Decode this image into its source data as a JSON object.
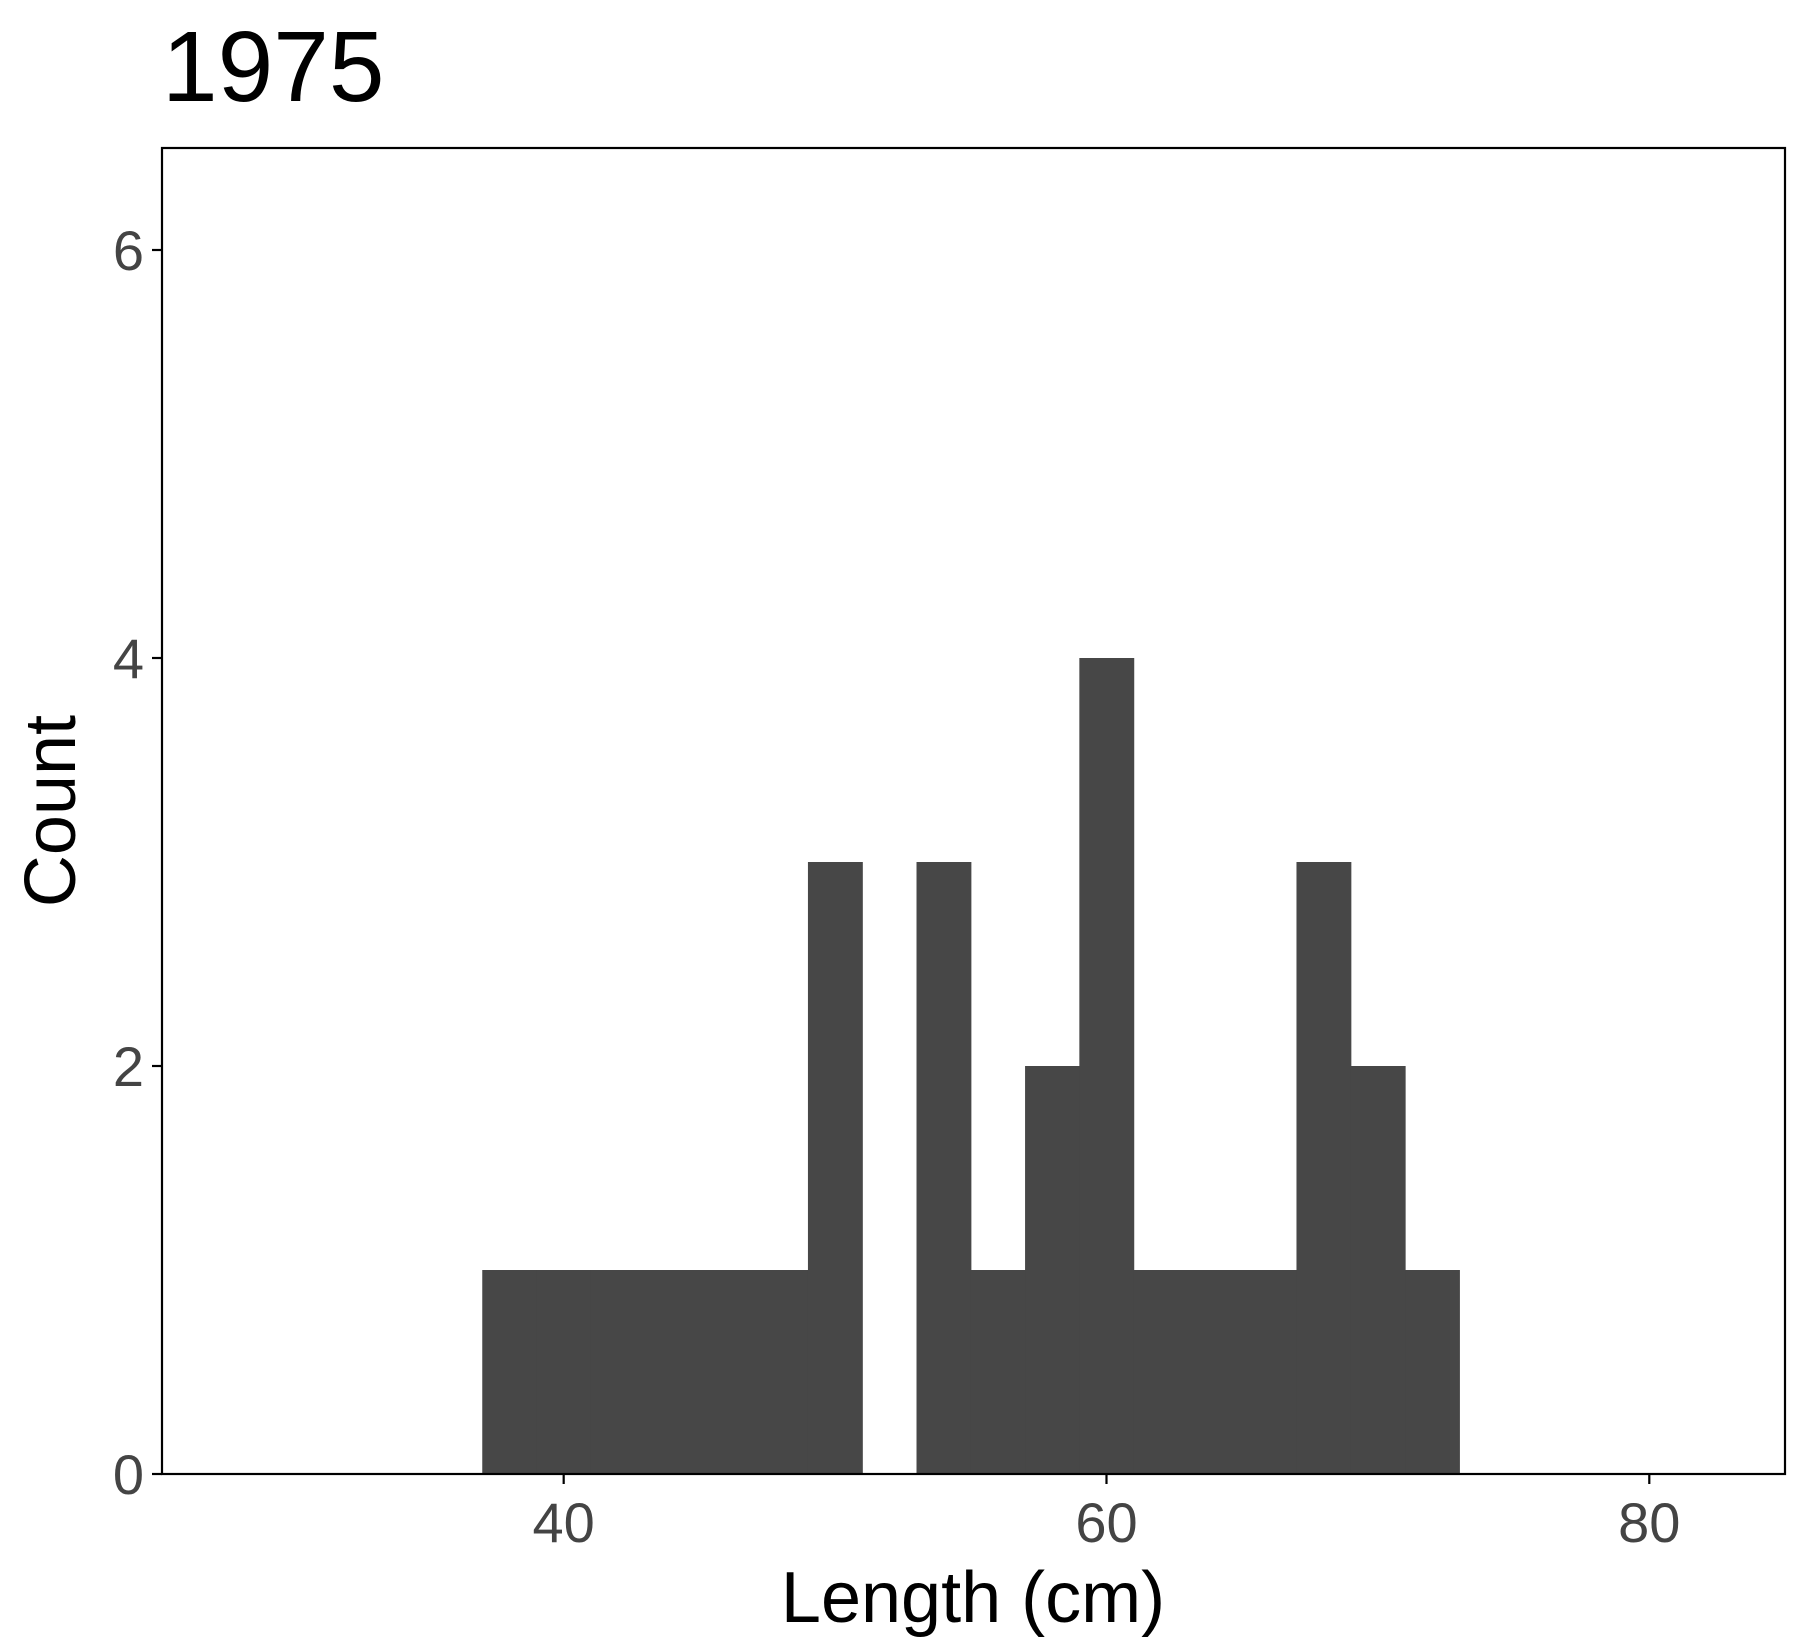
{
  "chart_data": {
    "type": "bar",
    "title": "1975",
    "xlabel": "Length (cm)",
    "ylabel": "Count",
    "xlim": [
      25.2,
      85
    ],
    "ylim": [
      0,
      6.5
    ],
    "xticks": [
      40,
      60,
      80
    ],
    "yticks": [
      0,
      2,
      4,
      6
    ],
    "bin_width": 2,
    "bins": [
      {
        "x0": 37,
        "x1": 39,
        "count": 1
      },
      {
        "x0": 39,
        "x1": 41,
        "count": 1
      },
      {
        "x0": 41,
        "x1": 43,
        "count": 1
      },
      {
        "x0": 43,
        "x1": 45,
        "count": 1
      },
      {
        "x0": 45,
        "x1": 47,
        "count": 1
      },
      {
        "x0": 47,
        "x1": 49,
        "count": 1
      },
      {
        "x0": 49,
        "x1": 51,
        "count": 3
      },
      {
        "x0": 51,
        "x1": 53,
        "count": 0
      },
      {
        "x0": 53,
        "x1": 55,
        "count": 3
      },
      {
        "x0": 55,
        "x1": 57,
        "count": 1
      },
      {
        "x0": 57,
        "x1": 59,
        "count": 2
      },
      {
        "x0": 59,
        "x1": 61,
        "count": 4
      },
      {
        "x0": 61,
        "x1": 63,
        "count": 1
      },
      {
        "x0": 63,
        "x1": 65,
        "count": 1
      },
      {
        "x0": 65,
        "x1": 67,
        "count": 1
      },
      {
        "x0": 67,
        "x1": 69,
        "count": 3
      },
      {
        "x0": 69,
        "x1": 71,
        "count": 2
      },
      {
        "x0": 71,
        "x1": 73,
        "count": 1
      }
    ],
    "bar_color": "#474747",
    "axis_color": "#000000",
    "tick_label_color": "#444444",
    "grid": false,
    "legend": "none"
  }
}
